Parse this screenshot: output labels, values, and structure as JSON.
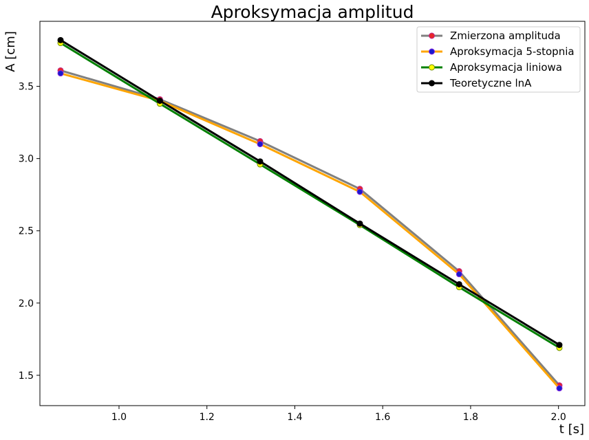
{
  "chart_data": {
    "type": "line",
    "title": "Aproksymacja amplitud",
    "xlabel": "t [s]",
    "ylabel": "A [cm]",
    "xlim": [
      0.82,
      2.06
    ],
    "ylim": [
      1.29,
      3.95
    ],
    "xticks": [
      1.0,
      1.2,
      1.4,
      1.6,
      1.8,
      2.0
    ],
    "xtick_labels": [
      "1.0",
      "1.2",
      "1.4",
      "1.6",
      "1.8",
      "2.0"
    ],
    "yticks": [
      1.5,
      2.0,
      2.5,
      3.0,
      3.5
    ],
    "ytick_labels": [
      "1.5",
      "2.0",
      "2.5",
      "3.0",
      "3.5"
    ],
    "grid": false,
    "legend_position": "top-right",
    "x": [
      0.867,
      1.093,
      1.321,
      1.548,
      1.774,
      2.002
    ],
    "series": [
      {
        "name": "Zmierzona amplituda",
        "line_color": "#808080",
        "marker_face": "#e8262a",
        "marker_edge": "#bd2b8e",
        "values": [
          3.61,
          3.41,
          3.12,
          2.79,
          2.22,
          1.43
        ]
      },
      {
        "name": "Aproksymacja 5-stopnia",
        "line_color": "#ffa500",
        "marker_face": "#1a1acc",
        "marker_edge": "#8a2be2",
        "values": [
          3.59,
          3.4,
          3.1,
          2.77,
          2.2,
          1.41
        ]
      },
      {
        "name": "Aproksymacja liniowa",
        "line_color": "#008000",
        "marker_face": "#ffff00",
        "marker_edge": "#6a8a00",
        "values": [
          3.8,
          3.38,
          2.96,
          2.54,
          2.11,
          1.69
        ]
      },
      {
        "name": "Teoretyczne lnA",
        "line_color": "#000000",
        "marker_face": "#000000",
        "marker_edge": "#000000",
        "values": [
          3.82,
          3.4,
          2.98,
          2.55,
          2.13,
          1.71
        ]
      }
    ]
  }
}
